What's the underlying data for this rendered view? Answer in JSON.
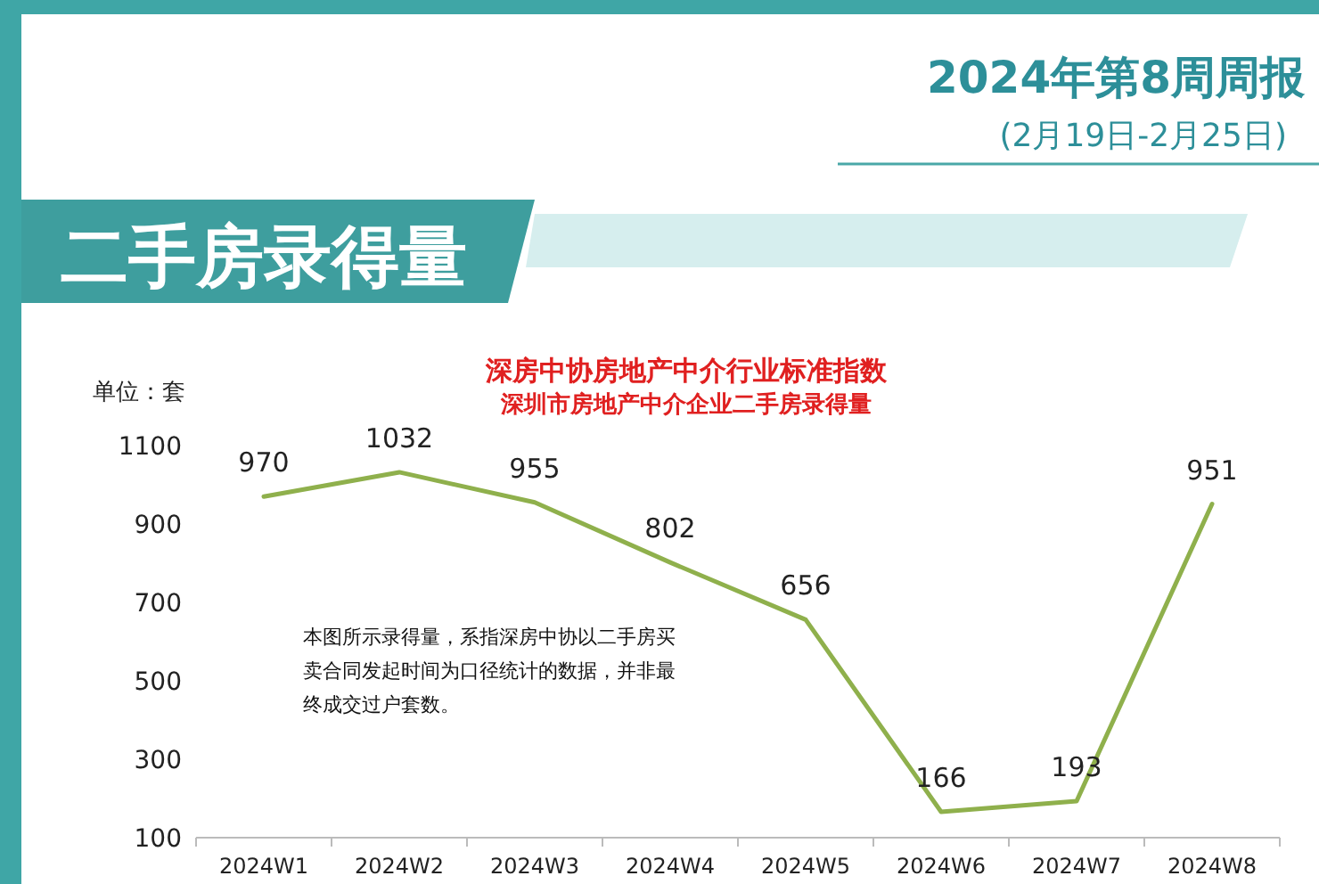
{
  "chart_data": {
    "type": "line",
    "title": "深房中协房地产中介行业标准指数",
    "subtitle": "深圳市房地产中介企业二手房录得量",
    "ylabel": "单位：套",
    "categories": [
      "2024W1",
      "2024W2",
      "2024W3",
      "2024W4",
      "2024W5",
      "2024W6",
      "2024W7",
      "2024W8"
    ],
    "values": [
      970,
      1032,
      955,
      802,
      656,
      166,
      193,
      951
    ],
    "color": "#8fb04c",
    "ylim": [
      100,
      1100
    ],
    "yticks": [
      100,
      300,
      500,
      700,
      900,
      1100
    ],
    "data_labels": true,
    "grid": false,
    "marker": "none",
    "line_style": "solid",
    "annotations": [
      "2024年第8周周报",
      "(2月19日-2月25日)",
      "二手房录得量",
      "本图所示录得量，系指深房中协以二手房买卖合同发起时间为口径统计的数据，并非最终成交过户套数。"
    ]
  }
}
